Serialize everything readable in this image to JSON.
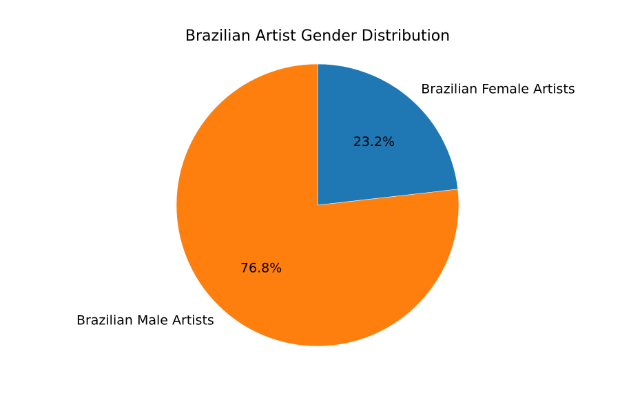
{
  "chart_data": {
    "type": "pie",
    "title": "Brazilian Artist Gender Distribution",
    "start_angle_deg": 90,
    "direction": "clockwise",
    "slices": [
      {
        "label": "Brazilian Female Artists",
        "value": 23.2,
        "pct_label": "23.2%",
        "color": "#1f77b4"
      },
      {
        "label": "Brazilian Male Artists",
        "value": 76.8,
        "pct_label": "76.8%",
        "color": "#ff7f0e"
      }
    ]
  }
}
